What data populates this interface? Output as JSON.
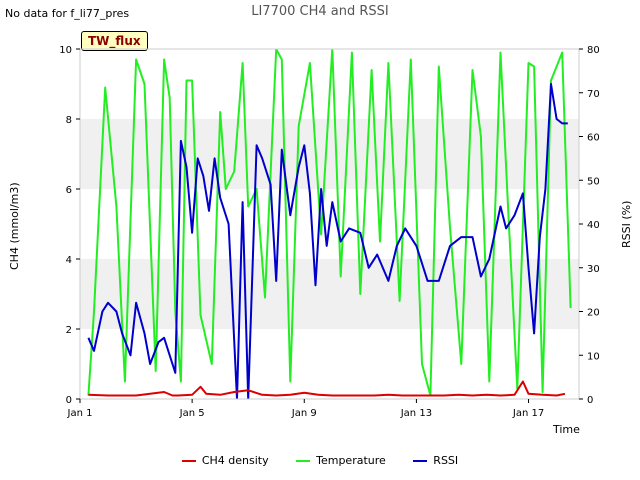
{
  "header": {
    "no_data": "No data for f_li77_pres",
    "badge": "TW_flux"
  },
  "chart_data": {
    "type": "line",
    "title": "LI7700 CH4 and RSSI",
    "xlabel": "Time",
    "ylabel": "CH4 (mmol/m3)",
    "y2label": "RSSI (%)",
    "xlim": [
      1,
      18.8
    ],
    "ylim": [
      0,
      10
    ],
    "y2lim": [
      0,
      80
    ],
    "x_ticks": [
      1,
      5,
      9,
      13,
      17
    ],
    "x_tick_labels": [
      "Jan 1",
      "Jan 5",
      "Jan 9",
      "Jan 13",
      "Jan 17"
    ],
    "y_ticks": [
      0,
      2,
      4,
      6,
      8,
      10
    ],
    "y2_ticks": [
      0,
      10,
      20,
      30,
      40,
      50,
      60,
      70,
      80
    ],
    "shaded_bands": [
      [
        2,
        4
      ],
      [
        6,
        8
      ]
    ],
    "legend_position": "bottom",
    "colors": {
      "ch4": "#dd0000",
      "temperature": "#22ee22",
      "rssi": "#0000cc"
    },
    "series": [
      {
        "name": "CH4 density",
        "axis": "left",
        "x": [
          1.3,
          2,
          2.5,
          3,
          3.5,
          4,
          4.3,
          4.5,
          5,
          5.3,
          5.5,
          6,
          6.5,
          7,
          7.5,
          8,
          8.5,
          9,
          9.5,
          10,
          10.5,
          11,
          11.5,
          12,
          12.5,
          13,
          13.5,
          14,
          14.5,
          15,
          15.5,
          16,
          16.5,
          16.8,
          17,
          17.5,
          18,
          18.3
        ],
        "y": [
          0.12,
          0.1,
          0.1,
          0.1,
          0.15,
          0.2,
          0.1,
          0.1,
          0.12,
          0.35,
          0.15,
          0.12,
          0.2,
          0.25,
          0.12,
          0.1,
          0.12,
          0.18,
          0.12,
          0.1,
          0.1,
          0.1,
          0.1,
          0.12,
          0.1,
          0.1,
          0.1,
          0.1,
          0.12,
          0.1,
          0.12,
          0.1,
          0.12,
          0.5,
          0.15,
          0.12,
          0.1,
          0.15
        ]
      },
      {
        "name": "Temperature",
        "axis": "left",
        "x": [
          1.3,
          1.5,
          1.9,
          2.3,
          2.6,
          3,
          3.3,
          3.7,
          4,
          4.2,
          4.4,
          4.6,
          4.8,
          5,
          5.3,
          5.7,
          6,
          6.2,
          6.5,
          6.8,
          7,
          7.3,
          7.6,
          8,
          8.2,
          8.5,
          8.8,
          9.2,
          9.6,
          10,
          10.3,
          10.7,
          11,
          11.4,
          11.7,
          12,
          12.4,
          12.8,
          13.2,
          13.5,
          13.8,
          14.2,
          14.6,
          15,
          15.3,
          15.6,
          16,
          16.3,
          16.6,
          17,
          17.2,
          17.5,
          17.8,
          18.2,
          18.5
        ],
        "y": [
          0.1,
          2.5,
          8.9,
          5.5,
          0.5,
          9.7,
          9,
          0.8,
          9.7,
          8.6,
          2.5,
          0.5,
          9.1,
          9.1,
          2.4,
          1,
          8.2,
          6,
          6.5,
          9.6,
          5.5,
          6,
          2.9,
          10,
          9.7,
          0.5,
          7.8,
          9.6,
          4.7,
          10,
          3.5,
          9.9,
          3,
          9.4,
          4.5,
          9.6,
          2.8,
          9.7,
          1,
          0.1,
          9.5,
          4.9,
          1,
          9.4,
          7.5,
          0.5,
          9.9,
          5,
          0.3,
          9.6,
          9.5,
          0.2,
          9.1,
          9.9,
          2.6
        ]
      },
      {
        "name": "RSSI",
        "axis": "right",
        "x": [
          1.3,
          1.5,
          1.8,
          2,
          2.3,
          2.5,
          2.8,
          3,
          3.3,
          3.5,
          3.8,
          4,
          4.2,
          4.4,
          4.6,
          4.8,
          5,
          5.2,
          5.4,
          5.6,
          5.8,
          6,
          6.3,
          6.6,
          6.8,
          7,
          7.3,
          7.5,
          7.8,
          8,
          8.2,
          8.5,
          8.8,
          9,
          9.2,
          9.4,
          9.6,
          9.8,
          10,
          10.3,
          10.6,
          11,
          11.3,
          11.6,
          12,
          12.3,
          12.6,
          13,
          13.4,
          13.8,
          14.2,
          14.6,
          15,
          15.3,
          15.6,
          16,
          16.2,
          16.5,
          16.8,
          17,
          17.2,
          17.4,
          17.6,
          17.8,
          18,
          18.2,
          18.4
        ],
        "y": [
          14,
          11,
          20,
          22,
          20,
          15,
          10,
          22,
          15,
          8,
          13,
          14,
          10,
          6,
          59,
          53,
          38,
          55,
          51,
          43,
          55,
          46,
          40,
          0,
          45,
          0,
          58,
          55,
          49,
          27,
          57,
          42,
          53,
          58,
          47,
          26,
          48,
          35,
          45,
          36,
          39,
          38,
          30,
          33,
          27,
          35,
          39,
          35,
          27,
          27,
          35,
          37,
          37,
          28,
          32,
          44,
          39,
          42,
          47,
          30,
          15,
          37,
          48,
          72,
          64,
          63,
          63
        ]
      }
    ]
  }
}
